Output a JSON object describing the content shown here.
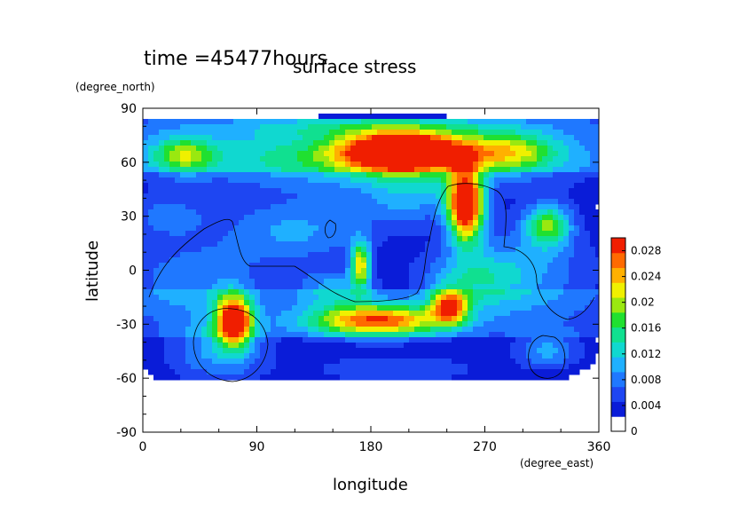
{
  "header": {
    "time_label": "time =45477hours",
    "title": "surface stress"
  },
  "chart_data": {
    "type": "heatmap",
    "title": "surface stress",
    "xlabel": "longitude",
    "ylabel": "latitude",
    "x_unit": "(degree_east)",
    "y_unit": "(degree_north)",
    "xlim": [
      0,
      360
    ],
    "ylim": [
      -90,
      90
    ],
    "x_ticks": [
      0,
      90,
      180,
      270,
      360
    ],
    "y_ticks": [
      -90,
      -60,
      -30,
      0,
      30,
      60,
      90
    ],
    "colorbar": {
      "range": [
        0,
        0.03
      ],
      "tick_values": [
        0,
        0.004,
        0.008,
        0.012,
        0.016,
        0.02,
        0.024,
        0.028
      ],
      "tick_labels": [
        "0",
        "0.004",
        "0.008",
        "0.012",
        "0.016",
        "0.02",
        "0.024",
        "0.028"
      ],
      "colors": [
        "#ffffff",
        "#0a1cd8",
        "#1e46f2",
        "#1f78ff",
        "#1fb0ff",
        "#10d8d0",
        "#10e090",
        "#20e030",
        "#9ae810",
        "#f0f000",
        "#ffb000",
        "#ff6a00",
        "#f01e00"
      ]
    },
    "blobs": [
      {
        "lon": 205,
        "lat": 66,
        "rx": 45,
        "ry": 10,
        "peak": 0.034
      },
      {
        "lon": 255,
        "lat": 36,
        "rx": 14,
        "ry": 20,
        "peak": 0.033
      },
      {
        "lon": 72,
        "lat": -28,
        "rx": 14,
        "ry": 14,
        "peak": 0.03
      },
      {
        "lon": 185,
        "lat": -28,
        "rx": 55,
        "ry": 9,
        "peak": 0.025
      },
      {
        "lon": 242,
        "lat": -20,
        "rx": 14,
        "ry": 9,
        "peak": 0.022
      },
      {
        "lon": 172,
        "lat": 3,
        "rx": 8,
        "ry": 13,
        "peak": 0.02
      },
      {
        "lon": 320,
        "lat": 25,
        "rx": 18,
        "ry": 12,
        "peak": 0.016
      },
      {
        "lon": 180,
        "lat": 62,
        "rx": 160,
        "ry": 17,
        "peak": 0.012
      },
      {
        "lon": 32,
        "lat": 64,
        "rx": 24,
        "ry": 10,
        "peak": 0.012
      },
      {
        "lon": 290,
        "lat": 66,
        "rx": 35,
        "ry": 10,
        "peak": 0.012
      },
      {
        "lon": 180,
        "lat": 80,
        "rx": 120,
        "ry": 6,
        "peak": 0.006
      },
      {
        "lon": 120,
        "lat": 22,
        "rx": 60,
        "ry": 18,
        "peak": 0.008
      },
      {
        "lon": 300,
        "lat": 0,
        "rx": 60,
        "ry": 26,
        "peak": 0.007
      },
      {
        "lon": 40,
        "lat": -5,
        "rx": 55,
        "ry": 20,
        "peak": 0.007
      },
      {
        "lon": 210,
        "lat": 40,
        "rx": 40,
        "ry": 15,
        "peak": 0.007
      },
      {
        "lon": 60,
        "lat": -45,
        "rx": 40,
        "ry": 18,
        "peak": 0.008
      },
      {
        "lon": 320,
        "lat": -45,
        "rx": 25,
        "ry": 10,
        "peak": 0.008
      },
      {
        "lon": 200,
        "lat": -55,
        "rx": 70,
        "ry": 8,
        "peak": 0.005
      },
      {
        "lon": 260,
        "lat": -5,
        "rx": 40,
        "ry": 15,
        "peak": 0.008
      },
      {
        "lon": 150,
        "lat": -10,
        "rx": 30,
        "ry": 10,
        "peak": 0.008
      },
      {
        "lon": 20,
        "lat": 30,
        "rx": 30,
        "ry": 12,
        "peak": 0.006
      }
    ]
  }
}
